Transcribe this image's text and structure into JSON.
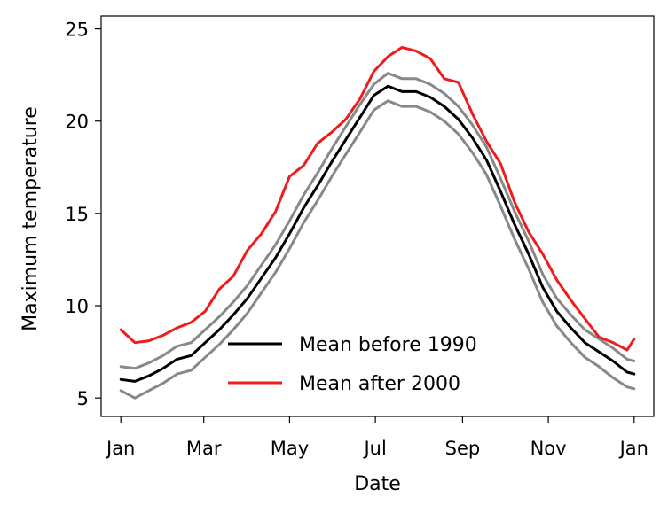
{
  "chart_data": {
    "type": "line",
    "title": "",
    "xlabel": "Date",
    "ylabel": "Maximum temperature",
    "xlim": [
      -14,
      379
    ],
    "ylim": [
      4.0,
      25.7
    ],
    "x_ticks": [
      {
        "day": 0,
        "label": "Jan"
      },
      {
        "day": 59,
        "label": "Mar"
      },
      {
        "day": 120,
        "label": "May"
      },
      {
        "day": 181,
        "label": "Jul"
      },
      {
        "day": 243,
        "label": "Sep"
      },
      {
        "day": 304,
        "label": "Nov"
      },
      {
        "day": 365,
        "label": "Jan"
      }
    ],
    "y_ticks": [
      5,
      10,
      15,
      20,
      25
    ],
    "grid": false,
    "legend_position": "lower-center",
    "x_unit": "day of year",
    "series": [
      {
        "name": "Mean before 1990",
        "color": "#000000",
        "in_legend": true,
        "x": [
          0,
          10,
          20,
          30,
          40,
          50,
          60,
          70,
          80,
          90,
          100,
          110,
          120,
          130,
          140,
          150,
          160,
          170,
          180,
          190,
          200,
          210,
          220,
          230,
          240,
          250,
          260,
          270,
          280,
          290,
          300,
          310,
          320,
          330,
          340,
          350,
          360,
          365
        ],
        "values": [
          6.0,
          5.9,
          6.2,
          6.6,
          7.1,
          7.3,
          8.0,
          8.7,
          9.5,
          10.4,
          11.5,
          12.6,
          13.9,
          15.3,
          16.5,
          17.8,
          19.0,
          20.2,
          21.4,
          21.9,
          21.6,
          21.6,
          21.3,
          20.8,
          20.1,
          19.1,
          17.9,
          16.2,
          14.4,
          12.8,
          11.0,
          9.7,
          8.8,
          8.0,
          7.5,
          7.0,
          6.4,
          6.3
        ]
      },
      {
        "name": "Mean after 2000",
        "color": "#ee1c1c",
        "in_legend": true,
        "x": [
          0,
          10,
          20,
          30,
          40,
          50,
          60,
          70,
          80,
          90,
          100,
          110,
          120,
          130,
          140,
          150,
          160,
          170,
          180,
          190,
          200,
          210,
          220,
          230,
          240,
          250,
          260,
          270,
          280,
          290,
          300,
          310,
          320,
          330,
          340,
          350,
          360,
          365
        ],
        "values": [
          8.7,
          8.0,
          8.1,
          8.4,
          8.8,
          9.1,
          9.7,
          10.9,
          11.6,
          13.0,
          13.9,
          15.1,
          17.0,
          17.6,
          18.8,
          19.4,
          20.1,
          21.2,
          22.7,
          23.5,
          24.0,
          23.8,
          23.4,
          22.3,
          22.1,
          20.4,
          18.9,
          17.7,
          15.6,
          14.0,
          12.8,
          11.4,
          10.3,
          9.3,
          8.3,
          8.0,
          7.6,
          8.2
        ]
      },
      {
        "name": "Upper bound before 1990",
        "color": "#888888",
        "in_legend": false,
        "x": [
          0,
          10,
          20,
          30,
          40,
          50,
          60,
          70,
          80,
          90,
          100,
          110,
          120,
          130,
          140,
          150,
          160,
          170,
          180,
          190,
          200,
          210,
          220,
          230,
          240,
          250,
          260,
          270,
          280,
          290,
          300,
          310,
          320,
          330,
          340,
          350,
          360,
          365
        ],
        "values": [
          6.7,
          6.6,
          6.9,
          7.3,
          7.8,
          8.0,
          8.7,
          9.4,
          10.2,
          11.1,
          12.2,
          13.3,
          14.6,
          16.0,
          17.2,
          18.5,
          19.7,
          20.9,
          22.0,
          22.6,
          22.3,
          22.3,
          22.0,
          21.5,
          20.8,
          19.8,
          18.6,
          16.9,
          15.1,
          13.5,
          11.7,
          10.4,
          9.5,
          8.7,
          8.2,
          7.7,
          7.1,
          7.0
        ]
      },
      {
        "name": "Lower bound before 1990",
        "color": "#888888",
        "in_legend": false,
        "x": [
          0,
          10,
          20,
          30,
          40,
          50,
          60,
          70,
          80,
          90,
          100,
          110,
          120,
          130,
          140,
          150,
          160,
          170,
          180,
          190,
          200,
          210,
          220,
          230,
          240,
          250,
          260,
          270,
          280,
          290,
          300,
          310,
          320,
          330,
          340,
          350,
          360,
          365
        ],
        "values": [
          5.4,
          5.0,
          5.4,
          5.8,
          6.3,
          6.5,
          7.2,
          7.9,
          8.7,
          9.6,
          10.7,
          11.8,
          13.1,
          14.5,
          15.7,
          17.0,
          18.2,
          19.4,
          20.6,
          21.1,
          20.8,
          20.8,
          20.5,
          20.0,
          19.3,
          18.3,
          17.1,
          15.4,
          13.6,
          12.0,
          10.2,
          8.9,
          8.0,
          7.2,
          6.7,
          6.1,
          5.6,
          5.5
        ]
      }
    ]
  }
}
